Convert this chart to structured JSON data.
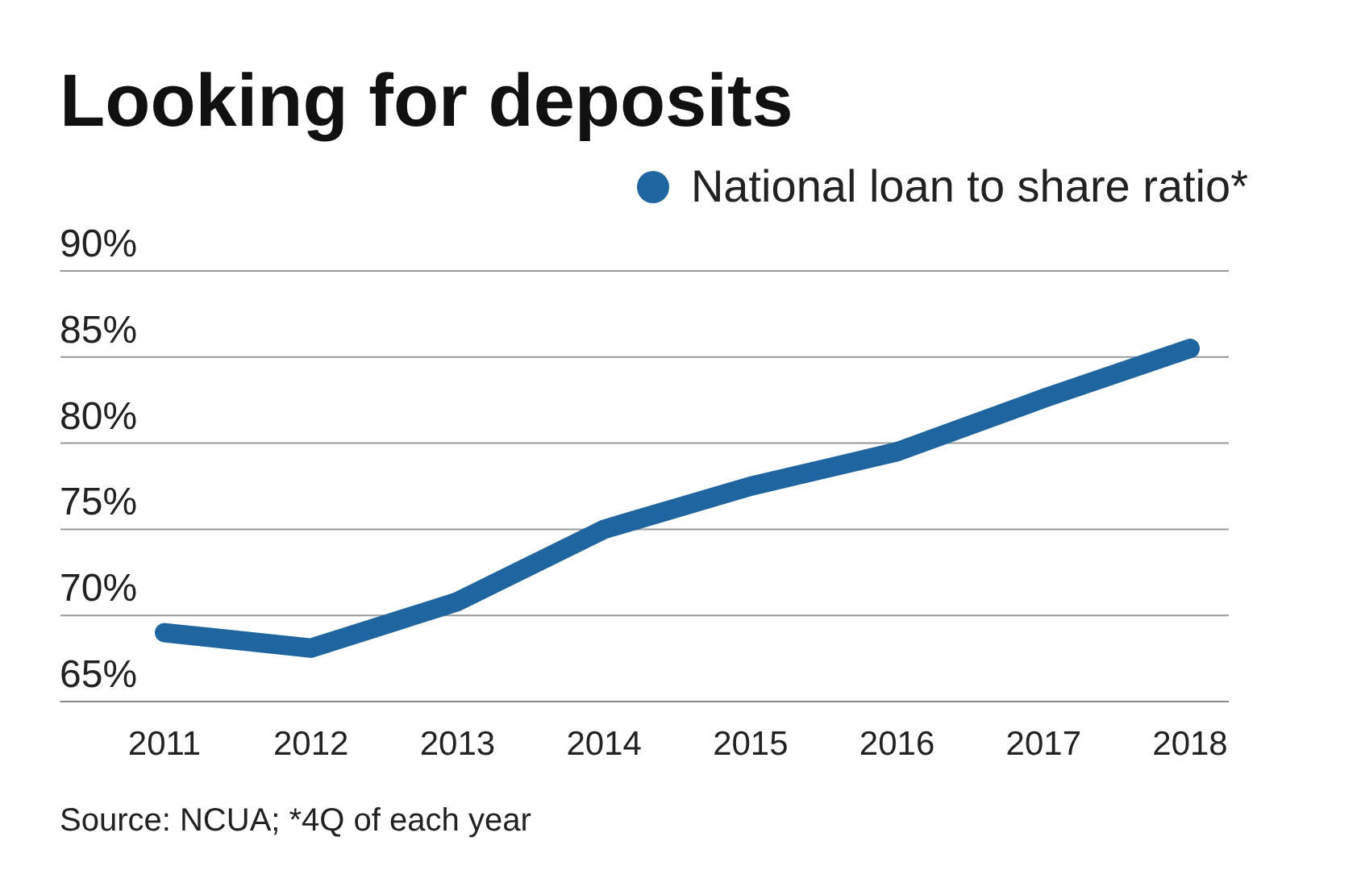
{
  "chart_data": {
    "type": "line",
    "title": "Looking for deposits",
    "categories": [
      "2011",
      "2012",
      "2013",
      "2014",
      "2015",
      "2016",
      "2017",
      "2018"
    ],
    "series": [
      {
        "name": "National loan to share ratio*",
        "color": "#1f65a0",
        "values": [
          69.0,
          68.1,
          70.8,
          75.0,
          77.5,
          79.5,
          82.6,
          85.5
        ]
      }
    ],
    "ylim": [
      65,
      90
    ],
    "yticks": [
      {
        "value": 65,
        "label": "65%"
      },
      {
        "value": 70,
        "label": "70%"
      },
      {
        "value": 75,
        "label": "75%"
      },
      {
        "value": 80,
        "label": "80%"
      },
      {
        "value": 85,
        "label": "85%"
      },
      {
        "value": 90,
        "label": "90%"
      }
    ],
    "grid": "y",
    "legend": "top right",
    "marker": "none",
    "line_style": "solid",
    "annotations": [
      "Source: NCUA; *4Q of each year"
    ]
  }
}
